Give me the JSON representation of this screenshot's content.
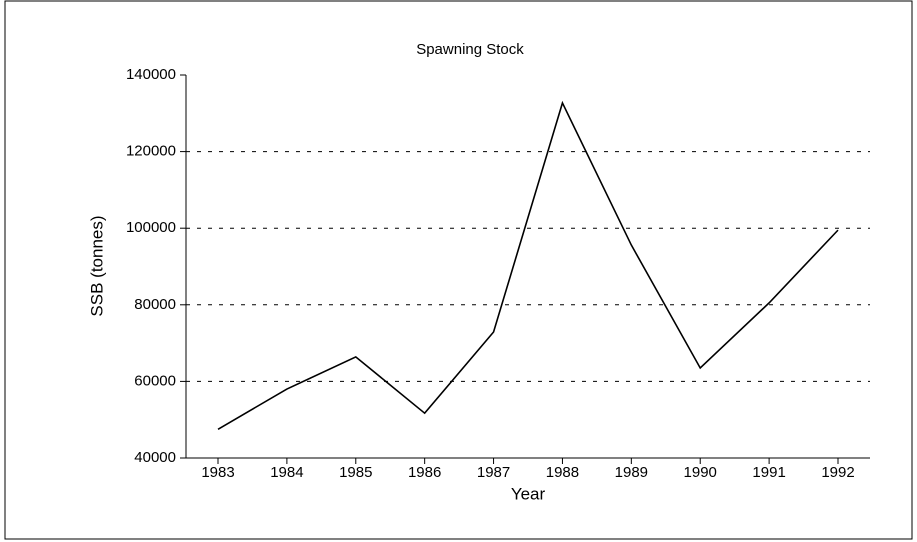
{
  "chart_data": {
    "type": "line",
    "title": "Spawning Stock",
    "x_label": "Year",
    "y_label": "SSB (tonnes)",
    "categories": [
      "1983",
      "1984",
      "1985",
      "1986",
      "1987",
      "1988",
      "1989",
      "1990",
      "1991",
      "1992"
    ],
    "series": [
      {
        "name": "SSB",
        "color": "#000000",
        "values": [
          47500,
          58000,
          66400,
          51700,
          72900,
          132700,
          95600,
          63500,
          80500,
          99500
        ]
      }
    ],
    "ylim": [
      40000,
      140000
    ],
    "yticks": [
      40000,
      60000,
      80000,
      100000,
      120000,
      140000
    ],
    "grid": true
  }
}
